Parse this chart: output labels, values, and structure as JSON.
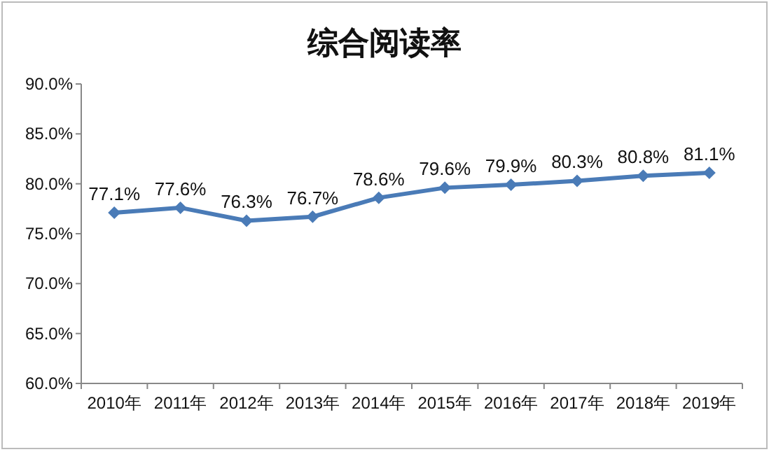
{
  "chart_data": {
    "type": "line",
    "title": "综合阅读率",
    "categories": [
      "2010年",
      "2011年",
      "2012年",
      "2013年",
      "2014年",
      "2015年",
      "2016年",
      "2017年",
      "2018年",
      "2019年"
    ],
    "values": [
      77.1,
      77.6,
      76.3,
      76.7,
      78.6,
      79.6,
      79.9,
      80.3,
      80.8,
      81.1
    ],
    "value_labels": [
      "77.1%",
      "77.6%",
      "76.3%",
      "76.7%",
      "78.6%",
      "79.6%",
      "79.9%",
      "80.3%",
      "80.8%",
      "81.1%"
    ],
    "color": "#4a7bb7",
    "marker": "diamond",
    "grid": false,
    "ylim": [
      60,
      90
    ],
    "yticks": [
      {
        "value": 60,
        "label": "60.0%"
      },
      {
        "value": 65,
        "label": "65.0%"
      },
      {
        "value": 70,
        "label": "70.0%"
      },
      {
        "value": 75,
        "label": "75.0%"
      },
      {
        "value": 80,
        "label": "80.0%"
      },
      {
        "value": 85,
        "label": "85.0%"
      },
      {
        "value": 90,
        "label": "90.0%"
      }
    ]
  }
}
